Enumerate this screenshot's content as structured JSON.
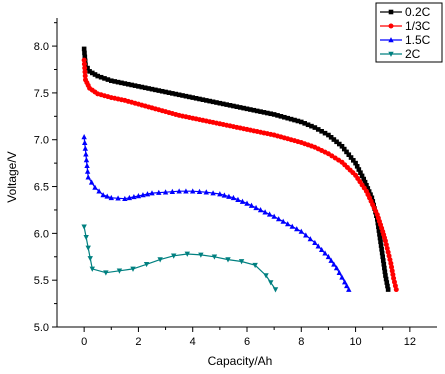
{
  "chart_data": {
    "type": "line",
    "title": "",
    "xlabel": "Capacity/Ah",
    "ylabel": "Voltage/V",
    "xlim": [
      -1,
      13
    ],
    "ylim": [
      5.0,
      8.3
    ],
    "xticks": [
      "0",
      "2",
      "4",
      "6",
      "8",
      "10",
      "12"
    ],
    "yticks": [
      "5.0",
      "5.5",
      "6.0",
      "6.5",
      "7.0",
      "7.5",
      "8.0"
    ],
    "legend_position": "top-right",
    "grid": false,
    "series": [
      {
        "name": "0.2C",
        "color": "#000000",
        "marker": "square",
        "points": [
          [
            0.0,
            7.97
          ],
          [
            0.05,
            7.8
          ],
          [
            0.2,
            7.73
          ],
          [
            0.5,
            7.68
          ],
          [
            1.0,
            7.63
          ],
          [
            1.5,
            7.6
          ],
          [
            2.0,
            7.57
          ],
          [
            2.5,
            7.54
          ],
          [
            3.0,
            7.51
          ],
          [
            3.5,
            7.48
          ],
          [
            4.0,
            7.45
          ],
          [
            4.5,
            7.42
          ],
          [
            5.0,
            7.39
          ],
          [
            5.5,
            7.36
          ],
          [
            6.0,
            7.33
          ],
          [
            6.5,
            7.3
          ],
          [
            7.0,
            7.27
          ],
          [
            7.5,
            7.23
          ],
          [
            8.0,
            7.19
          ],
          [
            8.5,
            7.13
          ],
          [
            9.0,
            7.05
          ],
          [
            9.5,
            6.93
          ],
          [
            10.0,
            6.75
          ],
          [
            10.3,
            6.58
          ],
          [
            10.6,
            6.38
          ],
          [
            10.8,
            6.15
          ],
          [
            10.9,
            5.95
          ],
          [
            11.0,
            5.75
          ],
          [
            11.1,
            5.55
          ],
          [
            11.2,
            5.4
          ]
        ]
      },
      {
        "name": "1/3C",
        "color": "#ff0000",
        "marker": "circle",
        "points": [
          [
            0.0,
            7.85
          ],
          [
            0.05,
            7.64
          ],
          [
            0.2,
            7.55
          ],
          [
            0.5,
            7.49
          ],
          [
            1.0,
            7.45
          ],
          [
            1.5,
            7.42
          ],
          [
            2.0,
            7.38
          ],
          [
            2.5,
            7.34
          ],
          [
            3.0,
            7.3
          ],
          [
            3.5,
            7.26
          ],
          [
            4.0,
            7.23
          ],
          [
            4.5,
            7.2
          ],
          [
            5.0,
            7.17
          ],
          [
            5.5,
            7.14
          ],
          [
            6.0,
            7.11
          ],
          [
            6.5,
            7.08
          ],
          [
            7.0,
            7.05
          ],
          [
            7.5,
            7.01
          ],
          [
            8.0,
            6.97
          ],
          [
            8.5,
            6.92
          ],
          [
            9.0,
            6.85
          ],
          [
            9.5,
            6.76
          ],
          [
            10.0,
            6.62
          ],
          [
            10.4,
            6.45
          ],
          [
            10.8,
            6.2
          ],
          [
            11.0,
            6.02
          ],
          [
            11.1,
            5.92
          ],
          [
            11.2,
            5.8
          ],
          [
            11.3,
            5.68
          ],
          [
            11.4,
            5.52
          ],
          [
            11.5,
            5.4
          ]
        ]
      },
      {
        "name": "1.5C",
        "color": "#0000ff",
        "marker": "triangle-up",
        "points": [
          [
            0.0,
            7.03
          ],
          [
            0.15,
            6.6
          ],
          [
            0.4,
            6.49
          ],
          [
            0.7,
            6.41
          ],
          [
            1.0,
            6.38
          ],
          [
            1.5,
            6.37
          ],
          [
            2.0,
            6.4
          ],
          [
            2.5,
            6.43
          ],
          [
            3.0,
            6.44
          ],
          [
            3.5,
            6.45
          ],
          [
            4.0,
            6.45
          ],
          [
            4.5,
            6.44
          ],
          [
            5.0,
            6.42
          ],
          [
            5.5,
            6.38
          ],
          [
            6.0,
            6.32
          ],
          [
            6.5,
            6.25
          ],
          [
            7.0,
            6.18
          ],
          [
            7.5,
            6.1
          ],
          [
            8.0,
            6.02
          ],
          [
            8.5,
            5.9
          ],
          [
            9.0,
            5.75
          ],
          [
            9.3,
            5.63
          ],
          [
            9.6,
            5.48
          ],
          [
            9.75,
            5.4
          ]
        ]
      },
      {
        "name": "2C",
        "color": "#008080",
        "marker": "triangle-down",
        "points": [
          [
            0.0,
            6.07
          ],
          [
            0.3,
            5.62
          ],
          [
            0.8,
            5.58
          ],
          [
            1.3,
            5.6
          ],
          [
            1.8,
            5.62
          ],
          [
            2.3,
            5.67
          ],
          [
            2.8,
            5.72
          ],
          [
            3.3,
            5.76
          ],
          [
            3.8,
            5.78
          ],
          [
            4.3,
            5.77
          ],
          [
            4.8,
            5.75
          ],
          [
            5.3,
            5.72
          ],
          [
            5.8,
            5.7
          ],
          [
            6.3,
            5.66
          ],
          [
            6.7,
            5.55
          ],
          [
            7.05,
            5.4
          ]
        ]
      }
    ]
  }
}
